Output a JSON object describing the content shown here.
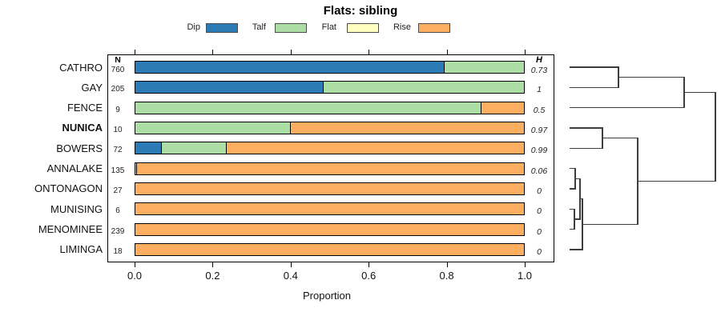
{
  "title": "Flats: sibling",
  "chart_data": {
    "type": "bar",
    "stacked": true,
    "horizontal": true,
    "title": "Flats: sibling",
    "xlabel": "Proportion",
    "xlim": [
      0,
      1
    ],
    "x_ticks": [
      0,
      0.2,
      0.4,
      0.6,
      0.8,
      1
    ],
    "x_tick_labels": [
      "0.0",
      "0.2",
      "0.4",
      "0.6",
      "0.8",
      "1.0"
    ],
    "categories": [
      "CATHRO",
      "GAY",
      "FENCE",
      "NUNICA",
      "BOWERS",
      "ANNALAKE",
      "ONTONAGON",
      "MUNISING",
      "MENOMINEE",
      "LIMINGA"
    ],
    "bold_category": "NUNICA",
    "n_label": "N",
    "h_label": "H",
    "n_values": [
      760,
      205,
      9,
      10,
      72,
      135,
      27,
      6,
      239,
      18
    ],
    "h_values": [
      "0.73",
      "1",
      "0.5",
      "0.97",
      "0.99",
      "0.06",
      "0",
      "0",
      "0",
      "0"
    ],
    "series": [
      {
        "name": "Dip",
        "color": "#2c7bb6",
        "values": [
          0.795,
          0.485,
          0,
          0,
          0.069,
          0,
          0,
          0,
          0,
          0
        ]
      },
      {
        "name": "Talf",
        "color": "#abdda4",
        "values": [
          0.205,
          0.515,
          0.889,
          0.4,
          0.167,
          0.007,
          0,
          0,
          0,
          0
        ]
      },
      {
        "name": "Flat",
        "color": "#ffffbf",
        "values": [
          0,
          0,
          0,
          0,
          0,
          0,
          0,
          0,
          0,
          0
        ]
      },
      {
        "name": "Rise",
        "color": "#fdae61",
        "values": [
          0,
          0,
          0.111,
          0.6,
          0.764,
          0.993,
          1,
          1,
          1,
          1
        ]
      }
    ],
    "legend_position": "top"
  },
  "dendrogram": {
    "leaf_order": [
      "CATHRO",
      "GAY",
      "FENCE",
      "NUNICA",
      "BOWERS",
      "ANNALAKE",
      "ONTONAGON",
      "MUNISING",
      "MENOMINEE",
      "LIMINGA"
    ],
    "merges": [
      {
        "id": "m1",
        "a": "L0",
        "b": "L1",
        "h": 0.335
      },
      {
        "id": "m2",
        "a": "m1",
        "b": "L2",
        "h": 0.786
      },
      {
        "id": "m3",
        "a": "L3",
        "b": "L4",
        "h": 0.225
      },
      {
        "id": "m4",
        "a": "L5",
        "b": "L6",
        "h": 0.038
      },
      {
        "id": "m5",
        "a": "L7",
        "b": "L8",
        "h": 0.033
      },
      {
        "id": "m6",
        "a": "m4",
        "b": "m5",
        "h": 0.071
      },
      {
        "id": "m7",
        "a": "m6",
        "b": "L9",
        "h": 0.088
      },
      {
        "id": "m8",
        "a": "m3",
        "b": "m7",
        "h": 0.467
      },
      {
        "id": "m9",
        "a": "m2",
        "b": "m8",
        "h": 1.0
      }
    ]
  }
}
